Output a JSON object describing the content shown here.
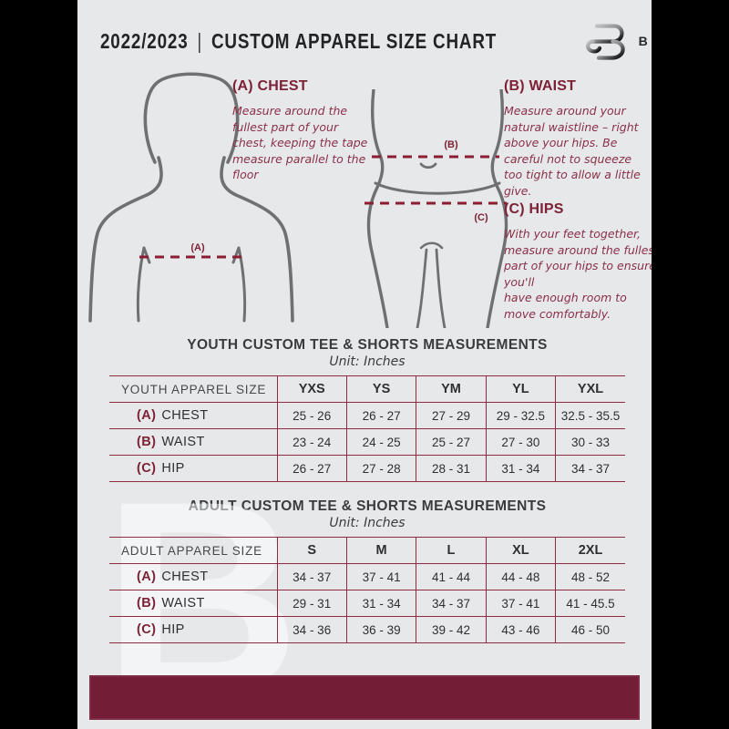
{
  "header": {
    "year": "2022/2023",
    "separator": "|",
    "title": "CUSTOM APPAREL SIZE CHART",
    "brand": "BREAKAWAY"
  },
  "guide": {
    "chest": {
      "heading": "(A) CHEST",
      "marker": "(A)",
      "text": "Measure around the fullest part of your chest, keeping the tape measure parallel to the floor"
    },
    "waist": {
      "heading": "(B) WAIST",
      "marker": "(B)",
      "text": "Measure around your natural waistline – right above your hips. Be careful not to squeeze too tight to allow a little give."
    },
    "hips": {
      "heading": "(C) HIPS",
      "marker": "(C)",
      "text": "With your feet together, measure around the fullest part of your hips to ensure you'll\nhave enough room to move comfortably."
    }
  },
  "youth_table": {
    "title": "YOUTH CUSTOM TEE & SHORTS MEASUREMENTS",
    "unit": "Unit: Inches",
    "header": [
      "YOUTH APPAREL SIZE",
      "YXS",
      "YS",
      "YM",
      "YL",
      "YXL"
    ],
    "rows": [
      {
        "key": "(A)",
        "label": "CHEST",
        "values": [
          "25 - 26",
          "26 - 27",
          "27 - 29",
          "29 - 32.5",
          "32.5 - 35.5"
        ]
      },
      {
        "key": "(B)",
        "label": "WAIST",
        "values": [
          "23 - 24",
          "24 - 25",
          "25 - 27",
          "27 - 30",
          "30 - 33"
        ]
      },
      {
        "key": "(C)",
        "label": "HIP",
        "values": [
          "26 - 27",
          "27 - 28",
          "28 - 31",
          "31 - 34",
          "34 - 37"
        ]
      }
    ]
  },
  "adult_table": {
    "title": "ADULT CUSTOM TEE & SHORTS MEASUREMENTS",
    "unit": "Unit: Inches",
    "header": [
      "ADULT APPAREL SIZE",
      "S",
      "M",
      "L",
      "XL",
      "2XL"
    ],
    "rows": [
      {
        "key": "(A)",
        "label": "CHEST",
        "values": [
          "34 - 37",
          "37 - 41",
          "41 - 44",
          "44 - 48",
          "48 - 52"
        ]
      },
      {
        "key": "(B)",
        "label": "WAIST",
        "values": [
          "29 - 31",
          "31 - 34",
          "34 - 37",
          "37 - 41",
          "41 - 45.5"
        ]
      },
      {
        "key": "(C)",
        "label": "HIP",
        "values": [
          "34 - 36",
          "36 - 39",
          "39 - 42",
          "43 - 46",
          "46 - 50"
        ]
      }
    ]
  },
  "watermark": "B",
  "colors": {
    "maroon": "#7d2136",
    "dash": "#8b1e33",
    "table_border": "#8e2b43",
    "footer": "#731d36",
    "page_bg": "#e7e8ea",
    "dark_text": "#2e2f31"
  }
}
